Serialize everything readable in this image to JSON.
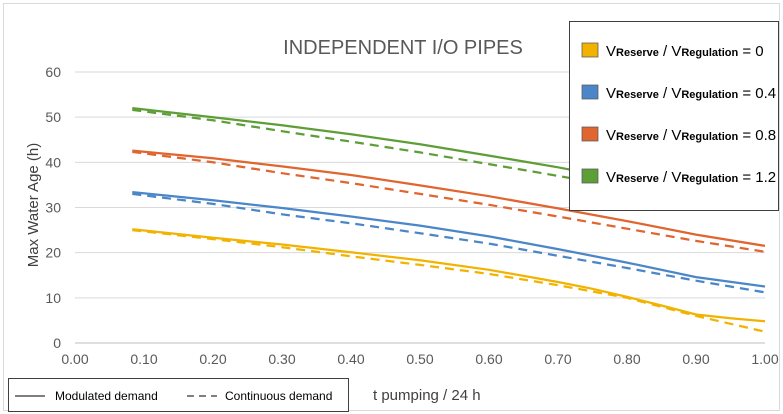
{
  "chart_data": {
    "type": "line",
    "title": "INDEPENDENT I/O PIPES",
    "xlabel": "t pumping / 24 h",
    "ylabel": "Max Water Age (h)",
    "xlim": [
      0.0,
      1.0
    ],
    "ylim": [
      0,
      60
    ],
    "x_ticks": [
      "0.00",
      "0.10",
      "0.20",
      "0.30",
      "0.40",
      "0.50",
      "0.60",
      "0.70",
      "0.80",
      "0.90",
      "1.00"
    ],
    "y_ticks": [
      "0",
      "10",
      "20",
      "30",
      "40",
      "50",
      "60"
    ],
    "grid": "horizontal",
    "legend_position": "top-right",
    "ratio_groups": [
      {
        "label": {
          "a": "V",
          "b": "Reserve",
          "c": " / V",
          "d": "Regulation",
          "e": " = 0"
        },
        "color": "#F2B300",
        "modulated": {
          "x": [
            0.083,
            0.2,
            0.3,
            0.4,
            0.5,
            0.6,
            0.7,
            0.75,
            0.8,
            0.85,
            0.9,
            0.95,
            1.0
          ],
          "y": [
            25.2,
            23.3,
            21.8,
            20.1,
            18.3,
            16.2,
            13.5,
            12.0,
            10.2,
            8.3,
            6.3,
            5.5,
            4.8
          ]
        },
        "continuous": {
          "x": [
            0.083,
            0.2,
            0.3,
            0.4,
            0.5,
            0.6,
            0.7,
            0.8,
            0.9,
            1.0
          ],
          "y": [
            25.0,
            23.0,
            21.2,
            19.2,
            17.3,
            15.3,
            12.8,
            10.0,
            6.0,
            2.5
          ]
        }
      },
      {
        "label": {
          "a": "V",
          "b": "Reserve",
          "c": " / V",
          "d": "Regulation",
          "e": " = 0.4"
        },
        "color": "#4A86C8",
        "modulated": {
          "x": [
            0.083,
            0.2,
            0.3,
            0.4,
            0.5,
            0.6,
            0.7,
            0.8,
            0.9,
            1.0
          ],
          "y": [
            33.4,
            31.6,
            29.9,
            28.0,
            26.0,
            23.6,
            20.8,
            17.8,
            14.6,
            12.5
          ]
        },
        "continuous": {
          "x": [
            0.083,
            0.2,
            0.3,
            0.4,
            0.5,
            0.6,
            0.7,
            0.8,
            0.9,
            1.0
          ],
          "y": [
            33.0,
            30.8,
            28.5,
            26.5,
            24.3,
            22.0,
            19.3,
            16.6,
            13.8,
            11.2
          ]
        }
      },
      {
        "label": {
          "a": "V",
          "b": "Reserve",
          "c": " / V",
          "d": "Regulation",
          "e": " = 0.8"
        },
        "color": "#E0652E",
        "modulated": {
          "x": [
            0.083,
            0.2,
            0.3,
            0.4,
            0.5,
            0.6,
            0.7,
            0.8,
            0.9,
            1.0
          ],
          "y": [
            42.6,
            40.9,
            39.1,
            37.2,
            34.9,
            32.5,
            29.8,
            27.0,
            24.0,
            21.5
          ]
        },
        "continuous": {
          "x": [
            0.083,
            0.2,
            0.3,
            0.4,
            0.5,
            0.6,
            0.7,
            0.8,
            0.9,
            1.0
          ],
          "y": [
            42.3,
            40.0,
            37.6,
            35.4,
            33.0,
            30.6,
            28.0,
            25.3,
            22.6,
            20.2
          ]
        }
      },
      {
        "label": {
          "a": "V",
          "b": "Reserve",
          "c": " / V",
          "d": "Regulation",
          "e": " = 1.2"
        },
        "color": "#5E9E37",
        "modulated": {
          "x": [
            0.083,
            0.2,
            0.3,
            0.4,
            0.5,
            0.6,
            0.7,
            0.8,
            0.9,
            1.0
          ],
          "y": [
            52.0,
            50.0,
            48.2,
            46.2,
            44.0,
            41.5,
            38.9,
            36.0,
            33.5,
            31.0
          ]
        },
        "continuous": {
          "x": [
            0.083,
            0.2,
            0.3,
            0.4,
            0.5,
            0.6,
            0.7,
            0.8,
            0.9,
            1.0
          ],
          "y": [
            51.6,
            49.3,
            46.9,
            44.6,
            42.2,
            39.6,
            37.0,
            34.3,
            31.9,
            29.5
          ]
        }
      }
    ],
    "style_legend": {
      "modulated_label": "Modulated demand",
      "continuous_label": "Continuous demand",
      "line_color": "#7F7F7F"
    }
  }
}
